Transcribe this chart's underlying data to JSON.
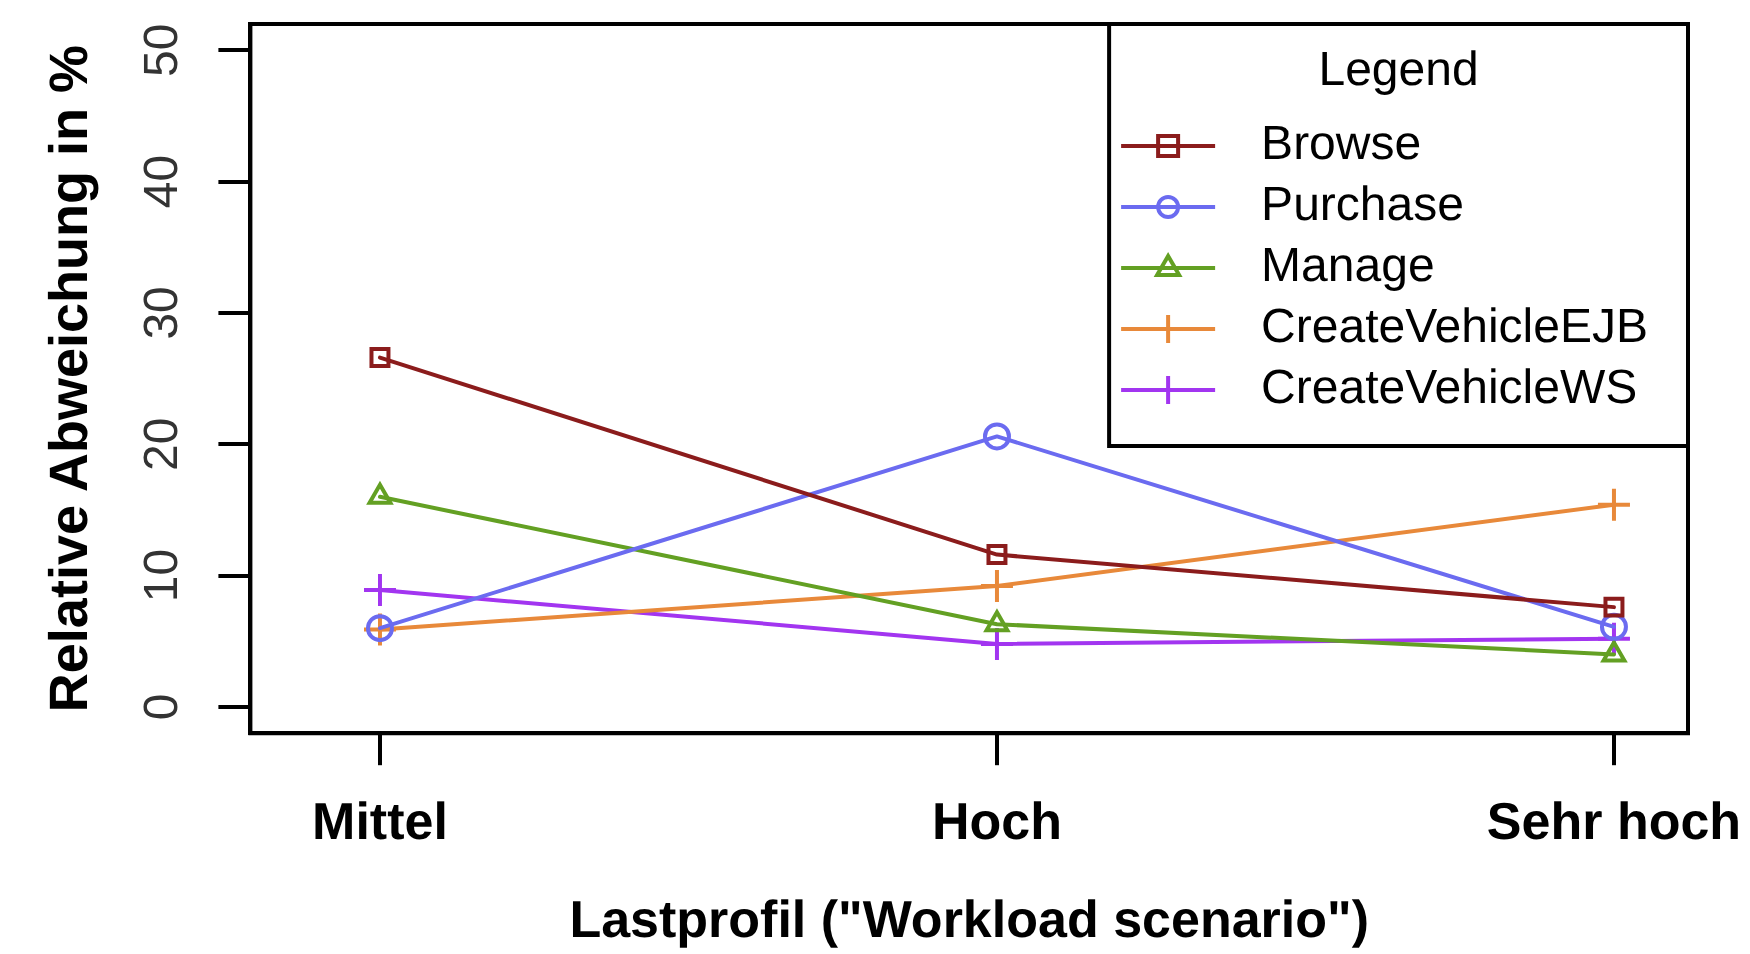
{
  "chart_data": {
    "type": "line",
    "xlabel": "Lastprofil (\"Workload scenario\")",
    "ylabel": "Relative Abweichung in %",
    "legend_title": "Legend",
    "categories": [
      "Mittel",
      "Hoch",
      "Sehr hoch"
    ],
    "series": [
      {
        "name": "Browse",
        "color": "#8b1c1c",
        "marker": "square",
        "values": [
          26.6,
          11.6,
          7.6
        ]
      },
      {
        "name": "Purchase",
        "color": "#6b6bf0",
        "marker": "circle",
        "values": [
          6.0,
          20.6,
          6.1
        ]
      },
      {
        "name": "Manage",
        "color": "#63a023",
        "marker": "triangle",
        "values": [
          16.0,
          6.3,
          4.0
        ]
      },
      {
        "name": "CreateVehicleEJB",
        "color": "#e8893a",
        "marker": "cross",
        "values": [
          5.9,
          9.2,
          15.4
        ]
      },
      {
        "name": "CreateVehicleWS",
        "color": "#a235f0",
        "marker": "cross",
        "values": [
          8.9,
          4.8,
          5.2
        ]
      }
    ],
    "ylim": [
      -2,
      52
    ],
    "yticks": [
      0,
      10,
      20,
      30,
      40,
      50
    ],
    "legend": "top right",
    "line_style": "solid"
  }
}
